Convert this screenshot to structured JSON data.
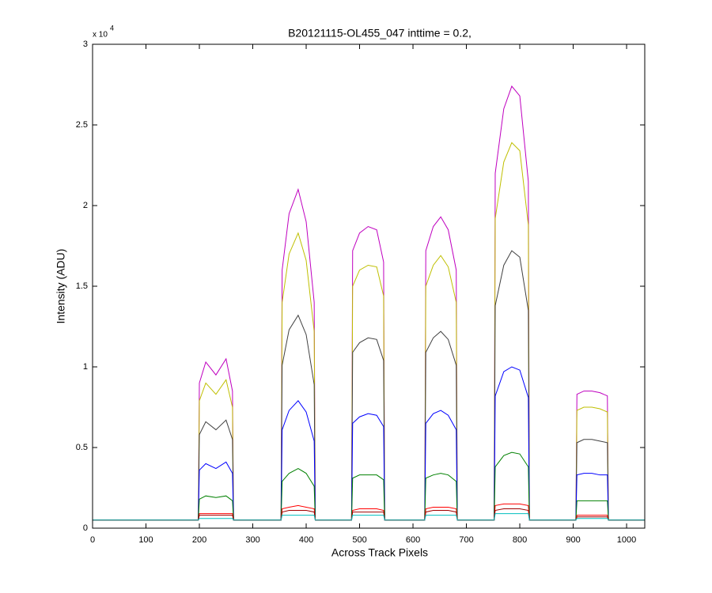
{
  "chart_data": {
    "type": "line",
    "title": "B20121115-OL455_047 inttime = 0.2,",
    "x_label": "Across Track Pixels",
    "y_label": "Intensity (ADU)",
    "y_multiplier": "x 10",
    "y_multiplier_exponent": "4",
    "xlim": [
      0,
      1034
    ],
    "ylim": [
      0,
      3
    ],
    "xticks": [
      0,
      100,
      200,
      300,
      400,
      500,
      600,
      700,
      800,
      900,
      1000
    ],
    "yticks": [
      0,
      0.5,
      1,
      1.5,
      2,
      2.5,
      3
    ],
    "x": [
      0,
      198,
      200,
      212,
      231,
      250,
      262,
      264,
      353,
      355,
      368,
      385,
      400,
      415,
      417,
      485,
      487,
      500,
      516,
      532,
      545,
      547,
      622,
      624,
      638,
      652,
      666,
      681,
      683,
      752,
      754,
      770,
      785,
      800,
      816,
      818,
      905,
      907,
      920,
      935,
      950,
      964,
      966,
      1034
    ],
    "series": [
      {
        "color": "#bf00bf",
        "values": [
          0.05,
          0.05,
          0.9,
          1.03,
          0.95,
          1.05,
          0.85,
          0.05,
          0.05,
          1.6,
          1.95,
          2.1,
          1.9,
          1.4,
          0.05,
          0.05,
          1.72,
          1.83,
          1.87,
          1.85,
          1.65,
          0.05,
          0.05,
          1.72,
          1.87,
          1.93,
          1.85,
          1.6,
          0.05,
          0.05,
          2.2,
          2.6,
          2.74,
          2.68,
          2.15,
          0.05,
          0.05,
          0.83,
          0.85,
          0.85,
          0.84,
          0.82,
          0.05,
          0.05
        ]
      },
      {
        "color": "#bfbf00",
        "values": [
          0.05,
          0.05,
          0.79,
          0.9,
          0.83,
          0.92,
          0.75,
          0.05,
          0.05,
          1.4,
          1.7,
          1.83,
          1.66,
          1.22,
          0.05,
          0.05,
          1.5,
          1.6,
          1.63,
          1.62,
          1.44,
          0.05,
          0.05,
          1.5,
          1.63,
          1.69,
          1.62,
          1.4,
          0.05,
          0.05,
          1.92,
          2.27,
          2.39,
          2.34,
          1.88,
          0.05,
          0.05,
          0.73,
          0.75,
          0.75,
          0.74,
          0.72,
          0.05,
          0.05
        ]
      },
      {
        "color": "#404040",
        "values": [
          0.05,
          0.05,
          0.58,
          0.66,
          0.61,
          0.67,
          0.55,
          0.05,
          0.05,
          1.01,
          1.23,
          1.32,
          1.2,
          0.89,
          0.05,
          0.05,
          1.09,
          1.15,
          1.18,
          1.17,
          1.04,
          0.05,
          0.05,
          1.09,
          1.18,
          1.22,
          1.17,
          1.01,
          0.05,
          0.05,
          1.38,
          1.63,
          1.72,
          1.68,
          1.35,
          0.05,
          0.05,
          0.53,
          0.55,
          0.55,
          0.54,
          0.53,
          0.05,
          0.05
        ]
      },
      {
        "color": "#0000ff",
        "values": [
          0.05,
          0.05,
          0.36,
          0.4,
          0.37,
          0.41,
          0.34,
          0.05,
          0.05,
          0.61,
          0.73,
          0.79,
          0.72,
          0.54,
          0.05,
          0.05,
          0.65,
          0.69,
          0.71,
          0.7,
          0.63,
          0.05,
          0.05,
          0.65,
          0.71,
          0.73,
          0.7,
          0.61,
          0.05,
          0.05,
          0.82,
          0.97,
          1.0,
          0.98,
          0.81,
          0.05,
          0.05,
          0.33,
          0.34,
          0.34,
          0.33,
          0.33,
          0.05,
          0.05
        ]
      },
      {
        "color": "#008000",
        "values": [
          0.05,
          0.05,
          0.18,
          0.2,
          0.19,
          0.2,
          0.17,
          0.05,
          0.05,
          0.29,
          0.34,
          0.37,
          0.34,
          0.26,
          0.05,
          0.05,
          0.31,
          0.33,
          0.33,
          0.33,
          0.3,
          0.05,
          0.05,
          0.31,
          0.33,
          0.34,
          0.33,
          0.29,
          0.05,
          0.05,
          0.38,
          0.45,
          0.47,
          0.46,
          0.38,
          0.05,
          0.05,
          0.17,
          0.17,
          0.17,
          0.17,
          0.17,
          0.05,
          0.05
        ]
      },
      {
        "color": "#ff0000",
        "values": [
          0.05,
          0.05,
          0.09,
          0.09,
          0.09,
          0.09,
          0.09,
          0.05,
          0.05,
          0.12,
          0.13,
          0.14,
          0.13,
          0.12,
          0.05,
          0.05,
          0.11,
          0.12,
          0.12,
          0.12,
          0.11,
          0.05,
          0.05,
          0.12,
          0.13,
          0.13,
          0.13,
          0.12,
          0.05,
          0.05,
          0.14,
          0.15,
          0.15,
          0.15,
          0.14,
          0.05,
          0.05,
          0.08,
          0.08,
          0.08,
          0.08,
          0.08,
          0.05,
          0.05
        ]
      },
      {
        "color": "#a00000",
        "values": [
          0.05,
          0.05,
          0.08,
          0.08,
          0.08,
          0.08,
          0.08,
          0.05,
          0.05,
          0.1,
          0.11,
          0.11,
          0.11,
          0.1,
          0.05,
          0.05,
          0.1,
          0.1,
          0.1,
          0.1,
          0.1,
          0.05,
          0.05,
          0.1,
          0.11,
          0.11,
          0.11,
          0.1,
          0.05,
          0.05,
          0.11,
          0.12,
          0.12,
          0.12,
          0.11,
          0.05,
          0.05,
          0.07,
          0.07,
          0.07,
          0.07,
          0.07,
          0.05,
          0.05
        ]
      },
      {
        "color": "#00bfbf",
        "values": [
          0.05,
          0.05,
          0.06,
          0.06,
          0.06,
          0.06,
          0.06,
          0.05,
          0.05,
          0.08,
          0.08,
          0.08,
          0.08,
          0.08,
          0.05,
          0.05,
          0.08,
          0.08,
          0.08,
          0.08,
          0.08,
          0.05,
          0.05,
          0.08,
          0.08,
          0.08,
          0.08,
          0.08,
          0.05,
          0.05,
          0.09,
          0.09,
          0.09,
          0.09,
          0.09,
          0.05,
          0.05,
          0.06,
          0.06,
          0.06,
          0.06,
          0.06,
          0.05,
          0.05
        ]
      }
    ]
  }
}
